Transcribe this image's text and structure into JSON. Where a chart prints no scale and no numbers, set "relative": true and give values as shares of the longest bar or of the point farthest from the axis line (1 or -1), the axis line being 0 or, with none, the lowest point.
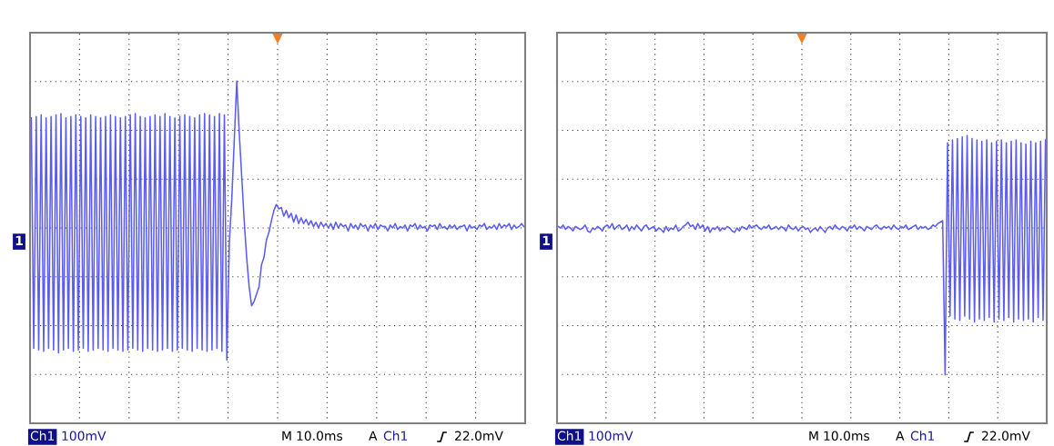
{
  "chart_data": [
    {
      "type": "line",
      "relative": true,
      "grid": true,
      "line_style": "solid",
      "categories": [
        null,
        null,
        null,
        null,
        null,
        null,
        null,
        null,
        null,
        null,
        null,
        null,
        null,
        null,
        null,
        null,
        null,
        null,
        null,
        null,
        null,
        null,
        null,
        null,
        null,
        null,
        null,
        null,
        null,
        null,
        null,
        null,
        null,
        null,
        null,
        null,
        null,
        null,
        null,
        null,
        null,
        null,
        null,
        null,
        null,
        null,
        null,
        null,
        null,
        null,
        null,
        null,
        null,
        null,
        null,
        null,
        null,
        null,
        null,
        null,
        null,
        null,
        null,
        null,
        null,
        null,
        null,
        null,
        null,
        null,
        null,
        null,
        null,
        null,
        null,
        null,
        null,
        null,
        null,
        null,
        null,
        null,
        null,
        null,
        null,
        null,
        null,
        null,
        null,
        null,
        null,
        null,
        null,
        null,
        null,
        null,
        null,
        null,
        null,
        null,
        null,
        null,
        null,
        null,
        null,
        null,
        null,
        null,
        null,
        null,
        null,
        null,
        null,
        null,
        null,
        null,
        null,
        null,
        null,
        null,
        null,
        null,
        null,
        null,
        null,
        null,
        null,
        null,
        null,
        null,
        null,
        null,
        null,
        null,
        null,
        null,
        null,
        null,
        null,
        null,
        null,
        null,
        null,
        null,
        null,
        null,
        null,
        null,
        null,
        null,
        null,
        null,
        null,
        null,
        null,
        null,
        null,
        null,
        null,
        null,
        null,
        null,
        null,
        null,
        null,
        null,
        null,
        null,
        null,
        null,
        null,
        null,
        null,
        null,
        null,
        null,
        null,
        null,
        null,
        null,
        null,
        null,
        null,
        null,
        null,
        null,
        null,
        null,
        null,
        null,
        null,
        null,
        null,
        null,
        null,
        null,
        null,
        null,
        null,
        null
      ],
      "series": [
        {
          "color": "#5b5bf2",
          "values": [
            0.75,
            -0.82,
            0.76,
            -0.83,
            0.77,
            -0.84,
            0.75,
            -0.82,
            0.76,
            -0.83,
            0.77,
            -0.85,
            0.78,
            -0.83,
            0.75,
            -0.82,
            0.76,
            -0.84,
            0.77,
            -0.83,
            0.76,
            -0.82,
            0.75,
            -0.84,
            0.77,
            -0.83,
            0.76,
            -0.82,
            0.75,
            -0.83,
            0.76,
            -0.84,
            0.77,
            -0.82,
            0.76,
            -0.83,
            0.75,
            -0.84,
            0.76,
            -0.83,
            0.77,
            -0.82,
            0.78,
            -0.83,
            0.76,
            -0.84,
            0.75,
            -0.82,
            0.76,
            -0.83,
            0.77,
            -0.84,
            0.76,
            -0.83,
            0.78,
            -0.82,
            0.76,
            -0.84,
            0.75,
            -0.83,
            0.76,
            -0.82,
            0.77,
            -0.83,
            0.76,
            -0.84,
            0.75,
            -0.82,
            0.77,
            -0.83,
            0.78,
            -0.84,
            0.77,
            -0.83,
            0.76,
            -0.82,
            0.78,
            -0.84,
            0.77,
            -0.9,
            -0.1,
            0.2,
            0.6,
            1.0,
            0.65,
            0.35,
            0.05,
            -0.2,
            -0.4,
            -0.53,
            -0.5,
            -0.45,
            -0.4,
            -0.25,
            -0.2,
            -0.08,
            -0.03,
            0.05,
            0.12,
            0.16,
            0.13,
            0.14,
            0.08,
            0.12,
            0.07,
            0.1,
            0.04,
            0.09,
            0.03,
            0.07,
            0.03,
            0.06,
            0.02,
            0.05,
            0.01,
            0.04,
            0.0,
            0.04,
            0.01,
            0.03,
            0.0,
            0.03,
            -0.01,
            0.04,
            0.0,
            0.03,
            0.01,
            0.02,
            -0.02,
            0.03,
            0.0,
            0.02,
            -0.01,
            0.03,
            0.01,
            0.02,
            -0.02,
            0.02,
            0.0,
            0.03,
            -0.01,
            0.02,
            0.01,
            0.01,
            -0.02,
            0.02,
            0.0,
            0.03,
            -0.01,
            0.01,
            0.0,
            0.02,
            -0.02,
            0.02,
            0.01,
            0.03,
            -0.01,
            0.02,
            0.0,
            0.01,
            -0.02,
            0.02,
            0.01,
            0.02,
            -0.01,
            0.03,
            0.0,
            0.01,
            -0.01,
            0.02,
            0.0,
            0.02,
            -0.01,
            0.01,
            0.01,
            0.02,
            -0.02,
            0.02,
            0.0,
            0.01,
            -0.01,
            0.02,
            0.01,
            0.03,
            -0.01,
            0.01,
            0.0,
            0.02,
            -0.01,
            0.03,
            0.0,
            0.02,
            0.01,
            0.03,
            -0.01,
            0.02,
            0.0,
            0.01,
            0.03,
            0.01
          ]
        }
      ],
      "annotations": [
        "1",
        "Ch1",
        "100mV",
        "M",
        "10.0ms",
        "A",
        "Ch1",
        "22.0mV"
      ]
    },
    {
      "type": "line",
      "relative": true,
      "grid": true,
      "line_style": "solid",
      "categories": [
        null,
        null,
        null,
        null,
        null,
        null,
        null,
        null,
        null,
        null,
        null,
        null,
        null,
        null,
        null,
        null,
        null,
        null,
        null,
        null,
        null,
        null,
        null,
        null,
        null,
        null,
        null,
        null,
        null,
        null,
        null,
        null,
        null,
        null,
        null,
        null,
        null,
        null,
        null,
        null,
        null,
        null,
        null,
        null,
        null,
        null,
        null,
        null,
        null,
        null,
        null,
        null,
        null,
        null,
        null,
        null,
        null,
        null,
        null,
        null,
        null,
        null,
        null,
        null,
        null,
        null,
        null,
        null,
        null,
        null,
        null,
        null,
        null,
        null,
        null,
        null,
        null,
        null,
        null,
        null,
        null,
        null,
        null,
        null,
        null,
        null,
        null,
        null,
        null,
        null,
        null,
        null,
        null,
        null,
        null,
        null,
        null,
        null,
        null,
        null,
        null,
        null,
        null,
        null,
        null,
        null,
        null,
        null,
        null,
        null,
        null,
        null,
        null,
        null,
        null,
        null,
        null,
        null,
        null,
        null,
        null,
        null,
        null,
        null,
        null,
        null,
        null,
        null,
        null,
        null,
        null,
        null,
        null,
        null,
        null,
        null,
        null,
        null,
        null,
        null,
        null,
        null,
        null,
        null,
        null,
        null,
        null,
        null,
        null,
        null,
        null,
        null,
        null,
        null,
        null,
        null,
        null,
        null,
        null,
        null,
        null,
        null,
        null,
        null,
        null,
        null,
        null,
        null,
        null,
        null,
        null,
        null,
        null,
        null,
        null,
        null,
        null,
        null,
        null,
        null,
        null,
        null,
        null,
        null,
        null,
        null,
        null,
        null,
        null,
        null,
        null,
        null,
        null,
        null,
        null,
        null,
        null,
        null,
        null,
        null
      ],
      "series": [
        {
          "color": "#5b5bf2",
          "values": [
            0.01,
            0.0,
            0.02,
            -0.01,
            0.01,
            0.0,
            -0.02,
            0.01,
            0.0,
            -0.01,
            0.0,
            0.02,
            -0.02,
            -0.03,
            0.0,
            -0.01,
            0.01,
            0.0,
            -0.02,
            0.01,
            0.02,
            0.0,
            0.03,
            -0.01,
            0.01,
            0.02,
            -0.01,
            0.0,
            0.02,
            -0.02,
            0.01,
            -0.01,
            0.02,
            0.0,
            -0.02,
            0.01,
            0.02,
            -0.01,
            0.0,
            0.01,
            -0.02,
            0.0,
            -0.01,
            -0.03,
            0.01,
            -0.02,
            0.0,
            -0.01,
            0.02,
            -0.02,
            -0.01,
            0.01,
            0.02,
            0.04,
            0.01,
            0.02,
            -0.01,
            0.03,
            0.0,
            0.02,
            -0.02,
            0.01,
            -0.03,
            0.0,
            -0.01,
            0.01,
            -0.02,
            0.0,
            -0.01,
            0.01,
            0.0,
            -0.02,
            -0.03,
            0.0,
            -0.02,
            0.01,
            0.0,
            -0.01,
            0.02,
            0.0,
            0.01,
            0.02,
            0.0,
            -0.01,
            0.01,
            0.0,
            0.02,
            -0.01,
            0.0,
            0.01,
            -0.01,
            0.01,
            0.0,
            -0.02,
            0.02,
            0.0,
            -0.01,
            0.01,
            -0.02,
            0.0,
            0.01,
            -0.01,
            0.0,
            -0.03,
            -0.01,
            0.0,
            -0.02,
            0.01,
            -0.01,
            -0.03,
            0.0,
            0.01,
            -0.01,
            0.02,
            0.0,
            -0.01,
            0.01,
            0.0,
            -0.02,
            0.01,
            0.0,
            0.02,
            -0.01,
            0.01,
            0.0,
            -0.02,
            0.01,
            0.0,
            -0.01,
            0.01,
            0.02,
            0.0,
            -0.01,
            0.01,
            0.0,
            0.01,
            -0.01,
            0.02,
            0.0,
            -0.01,
            0.01,
            0.0,
            0.02,
            -0.01,
            0.0,
            0.01,
            0.02,
            -0.01,
            0.01,
            0.0,
            0.01,
            -0.01,
            0.0,
            0.02,
            0.01,
            0.03,
            0.04,
            0.05,
            -1.0,
            0.58,
            -0.6,
            0.6,
            -0.62,
            0.61,
            -0.63,
            0.62,
            -0.6,
            0.63,
            -0.62,
            0.61,
            -0.64,
            0.6,
            -0.62,
            0.59,
            -0.63,
            0.6,
            -0.61,
            0.58,
            -0.64,
            0.59,
            -0.62,
            0.6,
            -0.63,
            0.58,
            -0.61,
            0.59,
            -0.64,
            0.6,
            -0.62,
            0.58,
            -0.63,
            0.57,
            -0.62,
            0.59,
            -0.64,
            0.58,
            -0.61,
            0.59,
            -0.63,
            0.6
          ]
        }
      ],
      "annotations": [
        "1",
        "Ch1",
        "100mV",
        "M",
        "10.0ms",
        "A",
        "Ch1",
        "22.0mV"
      ]
    }
  ]
}
